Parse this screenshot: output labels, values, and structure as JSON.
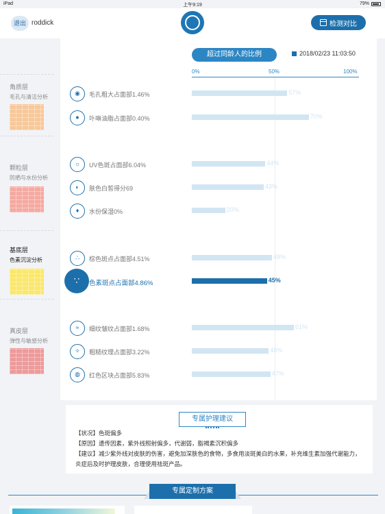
{
  "statusbar": {
    "device": "iPad",
    "time": "上午9:19",
    "battery": "79%"
  },
  "header": {
    "logout_label": "退出",
    "username": "roddick",
    "compare_label": "检测对比"
  },
  "sidebar": {
    "layers": [
      {
        "name": "角质层",
        "desc": "毛孔与清洁分析",
        "swatch_color": "#f7c89a",
        "active": false
      },
      {
        "name": "颗粒层",
        "desc": "防晒与水份分析",
        "swatch_color": "#f4a9a1",
        "active": false
      },
      {
        "name": "基底层",
        "desc": "色素沉淀分析",
        "swatch_color": "#fbe76a",
        "active": true
      },
      {
        "name": "真皮层",
        "desc": "弹性与敏感分析",
        "swatch_color": "#ec9a9a",
        "active": false
      }
    ]
  },
  "chart": {
    "title": "超过同龄人的比例",
    "legend": "2018/02/23 11:03:50",
    "axis": [
      "0%",
      "50%",
      "100%"
    ]
  },
  "chart_data": {
    "type": "bar",
    "orientation": "horizontal",
    "title": "超过同龄人的比例",
    "xlim": [
      0,
      100
    ],
    "categories": [
      "毛孔粗大占面部1.46%",
      "卟啉油脂占面部0.40%",
      "UV色斑占面部6.04%",
      "肤色白皙得分69",
      "水份保湿0%",
      "棕色斑点占面部4.51%",
      "色素斑点占面部4.86%",
      "细纹皱纹占面部1.68%",
      "粗糙纹理占面部3.22%",
      "红色区块占面部5.83%"
    ],
    "values": [
      57,
      70,
      44,
      43,
      20,
      48,
      45,
      61,
      46,
      47
    ],
    "value_labels": [
      "57%",
      "70%",
      "44%",
      "43%",
      "20%",
      "48%",
      "45%",
      "61%",
      "46%",
      "47%"
    ],
    "highlight_index": 6,
    "colors": {
      "normal": "#d2e5f3",
      "highlight": "#1d6fab"
    }
  },
  "rows": [
    {
      "icon": "pore-icon",
      "glyph": "◉"
    },
    {
      "icon": "oil-icon",
      "glyph": "●"
    },
    {
      "icon": "uv-spot-icon",
      "glyph": "☼"
    },
    {
      "icon": "skin-tone-icon",
      "glyph": "◐"
    },
    {
      "icon": "water-drop-icon",
      "glyph": "♦"
    },
    {
      "icon": "brown-spot-icon",
      "glyph": "∴"
    },
    {
      "icon": "pigment-spot-icon",
      "glyph": "∵"
    },
    {
      "icon": "wrinkle-icon",
      "glyph": "≈"
    },
    {
      "icon": "texture-icon",
      "glyph": "✧"
    },
    {
      "icon": "red-area-icon",
      "glyph": "◍"
    }
  ],
  "advice": {
    "title": "专属护理建议",
    "lines": [
      "【状况】色斑偏多",
      "【原因】遗传因素，紫外线照射偏多，代谢弱，脂褐素沉积偏多",
      "【建议】减少紫外线对皮肤的伤害，避免加深肤色的食物，多食用淡斑美白的水果，补充维生素加强代谢能力，炎症后及时护理皮肤，合理使用祛斑产品。"
    ]
  },
  "plan": {
    "title": "专属定制方案"
  }
}
